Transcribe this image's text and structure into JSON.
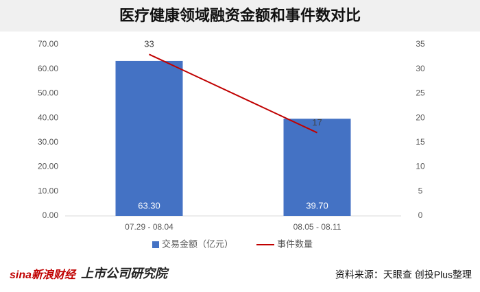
{
  "chart_data": {
    "type": "bar_line",
    "title": "医疗健康领域融资金额和事件数对比",
    "categories": [
      "07.29 - 08.04",
      "08.05 - 08.11"
    ],
    "series": [
      {
        "name": "交易金额（亿元）",
        "type": "bar",
        "color": "#4472c4",
        "values": [
          63.3,
          39.7
        ],
        "value_labels": [
          "63.30",
          "39.70"
        ]
      },
      {
        "name": "事件数量",
        "type": "line",
        "color": "#c00000",
        "axis": "y2",
        "values": [
          33,
          17
        ]
      }
    ],
    "ylim": [
      0,
      70
    ],
    "yticks": [
      {
        "value": 0,
        "label": "0.00"
      },
      {
        "value": 10,
        "label": "10.00"
      },
      {
        "value": 20,
        "label": "20.00"
      },
      {
        "value": 30,
        "label": "30.00"
      },
      {
        "value": 40,
        "label": "40.00"
      },
      {
        "value": 50,
        "label": "50.00"
      },
      {
        "value": 60,
        "label": "60.00"
      },
      {
        "value": 70,
        "label": "70.00"
      }
    ],
    "y2lim": [
      0,
      35
    ],
    "y2ticks": [
      0,
      5,
      10,
      15,
      20,
      25,
      30,
      35
    ],
    "grid": false,
    "legend": "bottom"
  },
  "footer": {
    "source": "资料来源：天眼查 创投Plus整理",
    "logos": [
      "sina新浪财经",
      "上市公司研究院"
    ]
  }
}
